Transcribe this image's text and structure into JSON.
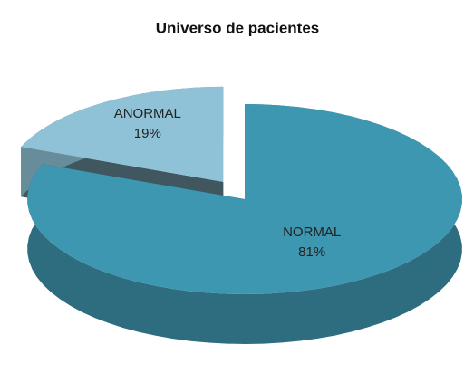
{
  "chart_data": {
    "type": "pie",
    "title": "Universo de pacientes",
    "categories": [
      "NORMAL",
      "ANORMAL"
    ],
    "values": [
      81,
      19
    ],
    "value_labels": [
      "81%",
      "19%"
    ],
    "colors": [
      "#3e97b0",
      "#8fc2d6"
    ]
  }
}
